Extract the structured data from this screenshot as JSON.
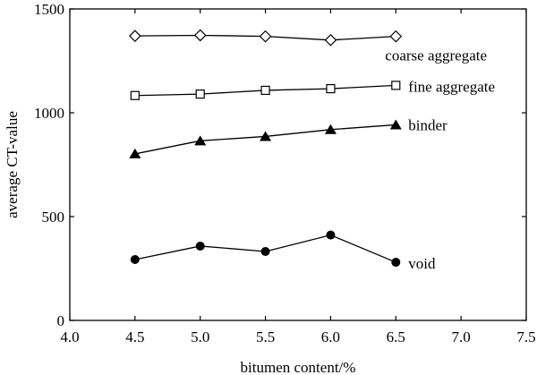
{
  "chart_data": {
    "type": "line",
    "title": "",
    "xlabel": "bitumen content/%",
    "ylabel": "average CT-value",
    "xlim": [
      4.0,
      7.5
    ],
    "ylim": [
      0,
      1500
    ],
    "xticks": [
      "4.0",
      "4.5",
      "5.0",
      "5.5",
      "6.0",
      "6.5",
      "7.0",
      "7.5"
    ],
    "yticks": [
      "0",
      "500",
      "1000",
      "1500"
    ],
    "grid": false,
    "x": [
      4.5,
      5.0,
      5.5,
      6.0,
      6.5
    ],
    "series": [
      {
        "name": "coarse aggregate",
        "marker": "diamond-open",
        "values": [
          1370,
          1373,
          1368,
          1350,
          1368
        ]
      },
      {
        "name": "fine aggregate",
        "marker": "square-open",
        "values": [
          1083,
          1090,
          1108,
          1116,
          1132
        ]
      },
      {
        "name": "binder",
        "marker": "triangle-filled",
        "values": [
          802,
          865,
          886,
          919,
          942
        ]
      },
      {
        "name": "void",
        "marker": "circle-filled",
        "values": [
          293,
          358,
          332,
          411,
          280
        ]
      }
    ]
  }
}
